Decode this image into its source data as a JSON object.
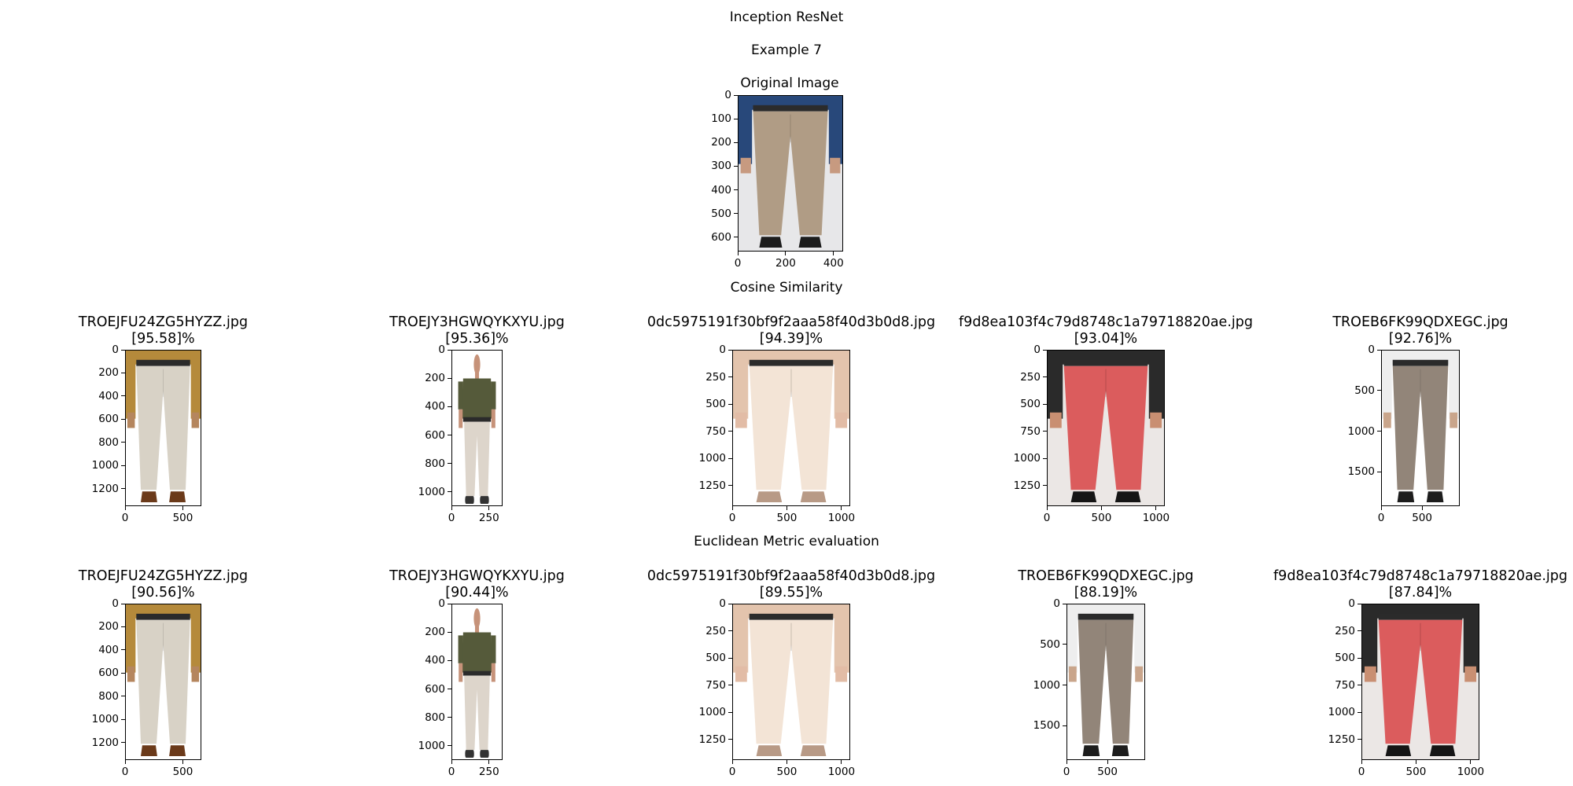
{
  "figure": {
    "title": "Inception ResNet",
    "subtitle": "Example 7",
    "original_title": "Original Image",
    "cosine_heading": "Cosine Similarity",
    "euclid_heading": "Euclidean Metric evaluation"
  },
  "chart_data": [
    {
      "type": "image",
      "panel": "original",
      "image": "khaki-trousers-model",
      "title": "",
      "xlim": [
        0,
        440
      ],
      "ylim": [
        660,
        0
      ],
      "xticks": [
        "0",
        "200",
        "400"
      ],
      "xtick_values": [
        0,
        200,
        400
      ],
      "yticks": [
        "0",
        "100",
        "200",
        "300",
        "400",
        "500",
        "600"
      ],
      "ytick_values": [
        0,
        100,
        200,
        300,
        400,
        500,
        600
      ]
    },
    {
      "type": "image",
      "panel": "cosine-1",
      "image": "beige-linen-trousers",
      "filename": "TROEJFU24ZG5HYZZ.jpg",
      "score": "[95.58]%",
      "xlim": [
        0,
        660
      ],
      "ylim": [
        1350,
        0
      ],
      "xticks": [
        "0",
        "500"
      ],
      "xtick_values": [
        0,
        500
      ],
      "yticks": [
        "0",
        "200",
        "400",
        "600",
        "800",
        "1000",
        "1200"
      ],
      "ytick_values": [
        0,
        200,
        400,
        600,
        800,
        1000,
        1200
      ]
    },
    {
      "type": "image",
      "panel": "cosine-2",
      "image": "man-olive-shirt-cream-trousers",
      "filename": "TROEJY3HGWQYKXYU.jpg",
      "score": "[95.36]%",
      "xlim": [
        0,
        340
      ],
      "ylim": [
        1100,
        0
      ],
      "xticks": [
        "0",
        "250"
      ],
      "xtick_values": [
        0,
        250
      ],
      "yticks": [
        "0",
        "200",
        "400",
        "600",
        "800",
        "1000"
      ],
      "ytick_values": [
        0,
        200,
        400,
        600,
        800,
        1000
      ]
    },
    {
      "type": "image",
      "panel": "cosine-3",
      "image": "cream-drawstring-trousers",
      "filename": "0dc5975191f30bf9f2aaa58f40d3b0d8.jpg",
      "score": "[94.39]%",
      "xlim": [
        0,
        1080
      ],
      "ylim": [
        1440,
        0
      ],
      "xticks": [
        "0",
        "500",
        "1000"
      ],
      "xtick_values": [
        0,
        500,
        1000
      ],
      "yticks": [
        "0",
        "250",
        "500",
        "750",
        "1000",
        "1250"
      ],
      "ytick_values": [
        0,
        250,
        500,
        750,
        1000,
        1250
      ]
    },
    {
      "type": "image",
      "panel": "cosine-4",
      "image": "coral-pink-trousers",
      "filename": "f9d8ea103f4c79d8748c1a79718820ae.jpg",
      "score": "[93.04]%",
      "xlim": [
        0,
        1080
      ],
      "ylim": [
        1440,
        0
      ],
      "xticks": [
        "0",
        "500",
        "1000"
      ],
      "xtick_values": [
        0,
        500,
        1000
      ],
      "yticks": [
        "0",
        "250",
        "500",
        "750",
        "1000",
        "1250"
      ],
      "ytick_values": [
        0,
        250,
        500,
        750,
        1000,
        1250
      ]
    },
    {
      "type": "image",
      "panel": "cosine-5",
      "image": "grey-formal-trousers",
      "filename": "TROEB6FK99QDXEGC.jpg",
      "score": "[92.76]%",
      "xlim": [
        0,
        960
      ],
      "ylim": [
        1920,
        0
      ],
      "xticks": [
        "0",
        "500"
      ],
      "xtick_values": [
        0,
        500
      ],
      "yticks": [
        "0",
        "500",
        "1000",
        "1500"
      ],
      "ytick_values": [
        0,
        500,
        1000,
        1500
      ]
    },
    {
      "type": "image",
      "panel": "euclid-1",
      "image": "beige-linen-trousers",
      "filename": "TROEJFU24ZG5HYZZ.jpg",
      "score": "[90.56]%",
      "xlim": [
        0,
        660
      ],
      "ylim": [
        1350,
        0
      ],
      "xticks": [
        "0",
        "500"
      ],
      "xtick_values": [
        0,
        500
      ],
      "yticks": [
        "0",
        "200",
        "400",
        "600",
        "800",
        "1000",
        "1200"
      ],
      "ytick_values": [
        0,
        200,
        400,
        600,
        800,
        1000,
        1200
      ]
    },
    {
      "type": "image",
      "panel": "euclid-2",
      "image": "man-olive-shirt-cream-trousers",
      "filename": "TROEJY3HGWQYKXYU.jpg",
      "score": "[90.44]%",
      "xlim": [
        0,
        340
      ],
      "ylim": [
        1100,
        0
      ],
      "xticks": [
        "0",
        "250"
      ],
      "xtick_values": [
        0,
        250
      ],
      "yticks": [
        "0",
        "200",
        "400",
        "600",
        "800",
        "1000"
      ],
      "ytick_values": [
        0,
        200,
        400,
        600,
        800,
        1000
      ]
    },
    {
      "type": "image",
      "panel": "euclid-3",
      "image": "cream-drawstring-trousers",
      "filename": "0dc5975191f30bf9f2aaa58f40d3b0d8.jpg",
      "score": "[89.55]%",
      "xlim": [
        0,
        1080
      ],
      "ylim": [
        1440,
        0
      ],
      "xticks": [
        "0",
        "500",
        "1000"
      ],
      "xtick_values": [
        0,
        500,
        1000
      ],
      "yticks": [
        "0",
        "250",
        "500",
        "750",
        "1000",
        "1250"
      ],
      "ytick_values": [
        0,
        250,
        500,
        750,
        1000,
        1250
      ]
    },
    {
      "type": "image",
      "panel": "euclid-4",
      "image": "grey-formal-trousers",
      "filename": "TROEB6FK99QDXEGC.jpg",
      "score": "[88.19]%",
      "xlim": [
        0,
        960
      ],
      "ylim": [
        1920,
        0
      ],
      "xticks": [
        "0",
        "500"
      ],
      "xtick_values": [
        0,
        500
      ],
      "yticks": [
        "0",
        "500",
        "1000",
        "1500"
      ],
      "ytick_values": [
        0,
        500,
        1000,
        1500
      ]
    },
    {
      "type": "image",
      "panel": "euclid-5",
      "image": "coral-pink-trousers",
      "filename": "f9d8ea103f4c79d8748c1a79718820ae.jpg",
      "score": "[87.84]%",
      "xlim": [
        0,
        1080
      ],
      "ylim": [
        1440,
        0
      ],
      "xticks": [
        "0",
        "500",
        "1000"
      ],
      "xtick_values": [
        0,
        500,
        1000
      ],
      "yticks": [
        "0",
        "250",
        "500",
        "750",
        "1000",
        "1250"
      ],
      "ytick_values": [
        0,
        250,
        500,
        750,
        1000,
        1250
      ]
    }
  ]
}
